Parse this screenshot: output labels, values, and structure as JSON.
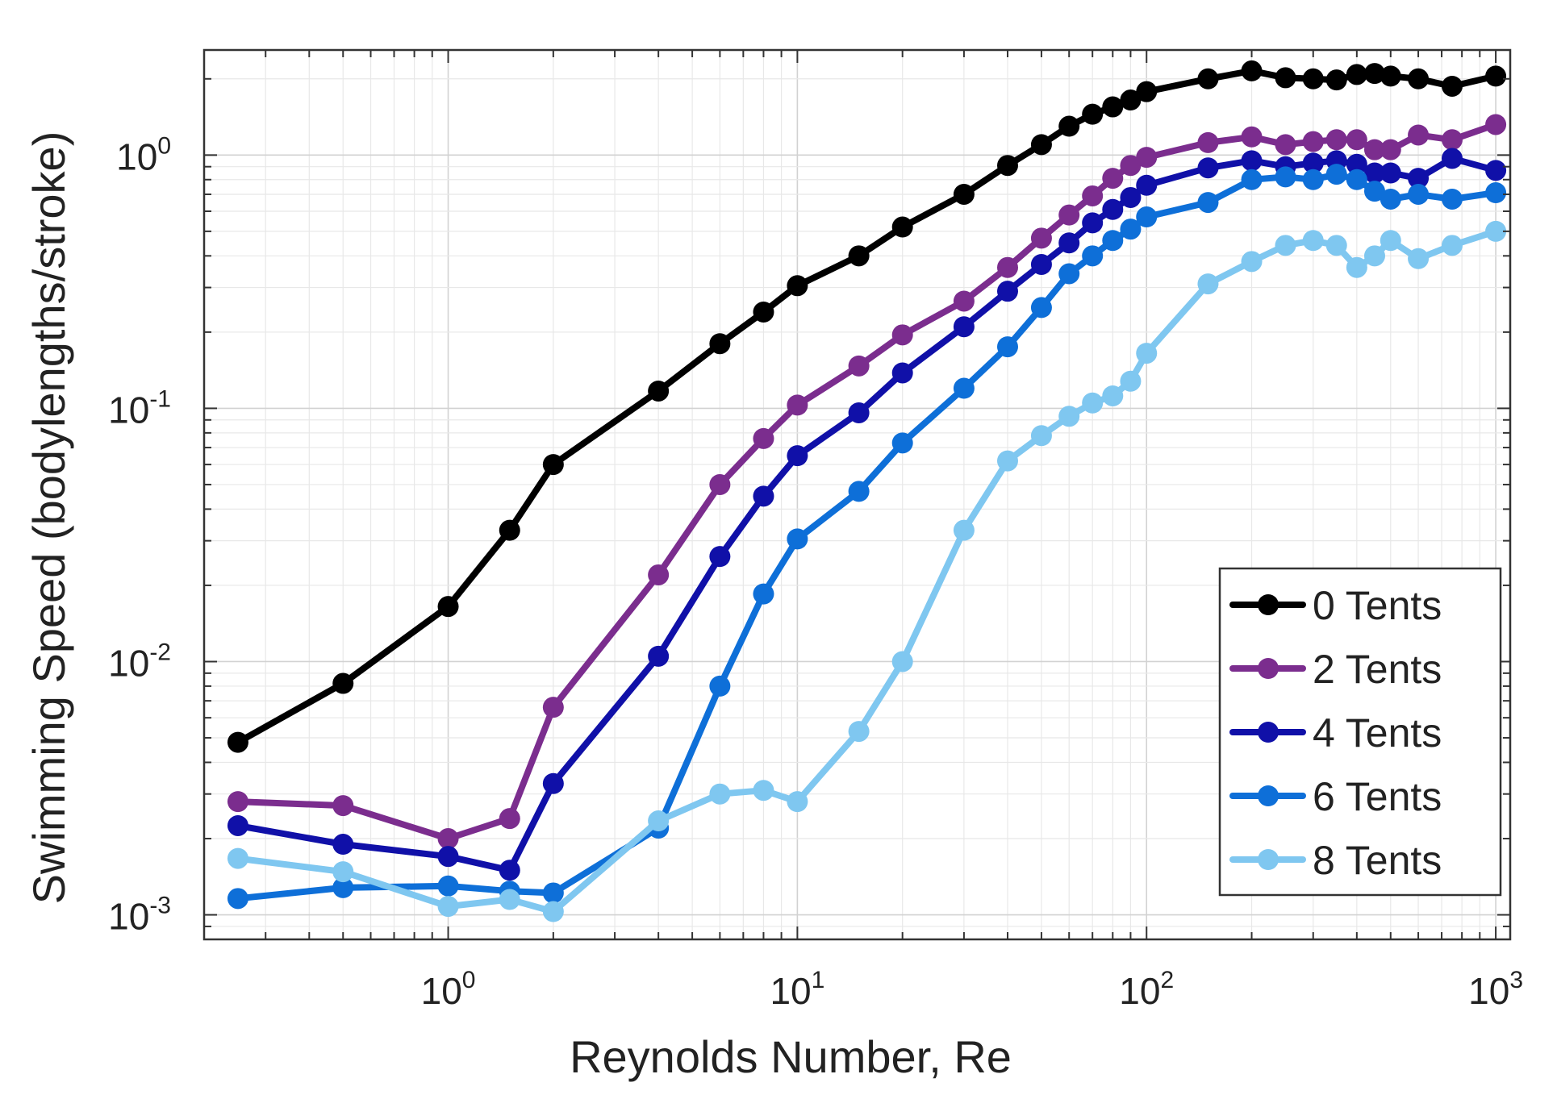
{
  "chart_data": {
    "type": "line",
    "x_scale": "log",
    "y_scale": "log",
    "xlabel": "Reynolds Number, Re",
    "ylabel": "Swimming Speed (bodylengths/stroke)",
    "xlim": [
      0.2,
      1100
    ],
    "ylim": [
      0.0008,
      2.6
    ],
    "grid": true,
    "legend_position": "bottom-right",
    "x_ticks": [
      {
        "value": 1,
        "base": "10",
        "exp": "0"
      },
      {
        "value": 10,
        "base": "10",
        "exp": "1"
      },
      {
        "value": 100,
        "base": "10",
        "exp": "2"
      },
      {
        "value": 1000,
        "base": "10",
        "exp": "3"
      }
    ],
    "y_ticks": [
      {
        "value": 0.001,
        "base": "10",
        "exp": "-3"
      },
      {
        "value": 0.01,
        "base": "10",
        "exp": "-2"
      },
      {
        "value": 0.1,
        "base": "10",
        "exp": "-1"
      },
      {
        "value": 1,
        "base": "10",
        "exp": "0"
      }
    ],
    "x": [
      0.25,
      0.5,
      1,
      1.5,
      2,
      4,
      6,
      8,
      10,
      15,
      20,
      30,
      40,
      50,
      60,
      70,
      80,
      90,
      100,
      150,
      200,
      250,
      300,
      350,
      400,
      450,
      500,
      600,
      750,
      1000
    ],
    "series": [
      {
        "name": "0 Tents",
        "color": "#000000",
        "values": [
          0.0048,
          0.0082,
          0.0165,
          0.033,
          0.06,
          0.117,
          0.18,
          0.24,
          0.305,
          0.4,
          0.52,
          0.7,
          0.91,
          1.1,
          1.3,
          1.45,
          1.55,
          1.65,
          1.78,
          2.0,
          2.15,
          2.02,
          2.0,
          1.98,
          2.08,
          2.1,
          2.05,
          2.0,
          1.87,
          2.05
        ]
      },
      {
        "name": "2 Tents",
        "color": "#7B2D8E",
        "values": [
          0.0028,
          0.0027,
          0.002,
          0.0024,
          0.0066,
          0.022,
          0.05,
          0.076,
          0.103,
          0.147,
          0.195,
          0.265,
          0.36,
          0.47,
          0.58,
          0.69,
          0.81,
          0.91,
          0.98,
          1.12,
          1.18,
          1.1,
          1.13,
          1.15,
          1.15,
          1.05,
          1.05,
          1.2,
          1.15,
          1.32
        ]
      },
      {
        "name": "4 Tents",
        "color": "#1010A8",
        "values": [
          0.00225,
          0.0019,
          0.0017,
          0.0015,
          0.0033,
          0.0105,
          0.026,
          0.045,
          0.065,
          0.096,
          0.138,
          0.21,
          0.29,
          0.37,
          0.45,
          0.54,
          0.61,
          0.68,
          0.76,
          0.89,
          0.95,
          0.9,
          0.93,
          0.95,
          0.92,
          0.85,
          0.85,
          0.81,
          0.97,
          0.87
        ]
      },
      {
        "name": "6 Tents",
        "color": "#0E6FD8",
        "values": [
          0.00116,
          0.00128,
          0.0013,
          0.00124,
          0.00122,
          0.0022,
          0.008,
          0.0185,
          0.0305,
          0.047,
          0.073,
          0.12,
          0.175,
          0.25,
          0.34,
          0.4,
          0.46,
          0.51,
          0.57,
          0.65,
          0.8,
          0.82,
          0.8,
          0.84,
          0.8,
          0.72,
          0.67,
          0.7,
          0.67,
          0.71
        ]
      },
      {
        "name": "8 Tents",
        "color": "#7FC7F0",
        "values": [
          0.00167,
          0.00148,
          0.00108,
          0.00115,
          0.00103,
          0.00235,
          0.003,
          0.0031,
          0.0028,
          0.0053,
          0.01,
          0.033,
          0.062,
          0.078,
          0.093,
          0.105,
          0.112,
          0.128,
          0.165,
          0.31,
          0.38,
          0.44,
          0.46,
          0.44,
          0.36,
          0.4,
          0.46,
          0.39,
          0.44,
          0.5
        ]
      }
    ]
  }
}
